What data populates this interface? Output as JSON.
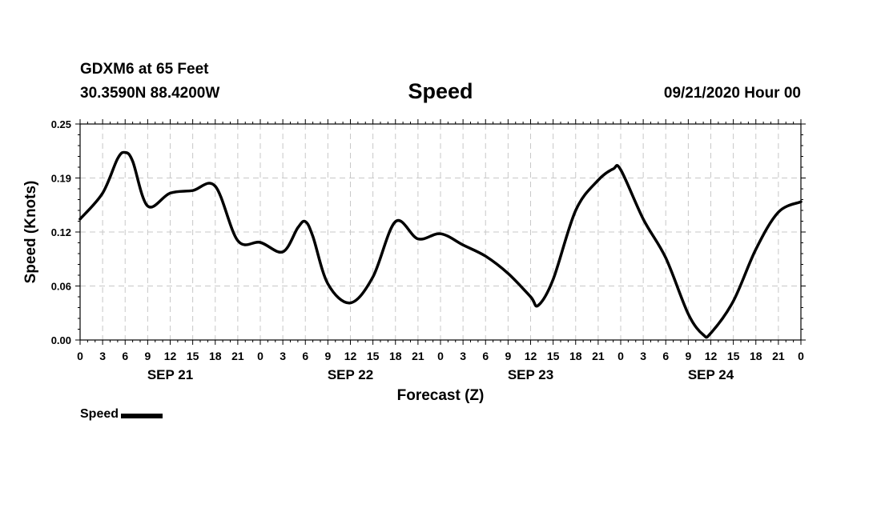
{
  "header": {
    "station": "GDXM6 at 65 Feet",
    "coords": "30.3590N 88.4200W",
    "title": "Speed",
    "datetime": "09/21/2020 Hour 00"
  },
  "legend": {
    "label": "Speed"
  },
  "chart_data": {
    "type": "line",
    "title": "Speed",
    "xlabel": "Forecast (Z)",
    "ylabel": "Speed (Knots)",
    "x_unit": "forecast hour",
    "xlim": [
      0,
      96
    ],
    "ylim": [
      0,
      0.25
    ],
    "y_ticks": [
      "0.00",
      "0.06",
      "0.12",
      "0.19",
      "0.25"
    ],
    "x_tick_labels": [
      "0",
      "3",
      "6",
      "9",
      "12",
      "15",
      "18",
      "21",
      "0",
      "3",
      "6",
      "9",
      "12",
      "15",
      "18",
      "21",
      "0",
      "3",
      "6",
      "9",
      "12",
      "15",
      "18",
      "21",
      "0",
      "3",
      "6",
      "9",
      "12",
      "15",
      "18",
      "21",
      "0"
    ],
    "day_labels": [
      "SEP 21",
      "SEP 22",
      "SEP 23",
      "SEP 24"
    ],
    "grid": true,
    "legend_position": "bottom-left",
    "series_color": "#000000",
    "series": [
      {
        "name": "Speed",
        "points": [
          [
            0,
            0.14
          ],
          [
            3,
            0.17
          ],
          [
            5,
            0.21
          ],
          [
            6,
            0.217
          ],
          [
            7,
            0.207
          ],
          [
            9,
            0.155
          ],
          [
            12,
            0.17
          ],
          [
            15,
            0.173
          ],
          [
            18,
            0.178
          ],
          [
            21,
            0.115
          ],
          [
            24,
            0.113
          ],
          [
            27,
            0.102
          ],
          [
            29,
            0.13
          ],
          [
            30,
            0.137
          ],
          [
            31,
            0.12
          ],
          [
            33,
            0.065
          ],
          [
            36,
            0.043
          ],
          [
            39,
            0.073
          ],
          [
            42,
            0.137
          ],
          [
            45,
            0.117
          ],
          [
            48,
            0.123
          ],
          [
            51,
            0.11
          ],
          [
            54,
            0.097
          ],
          [
            57,
            0.077
          ],
          [
            60,
            0.05
          ],
          [
            61,
            0.04
          ],
          [
            63,
            0.07
          ],
          [
            66,
            0.15
          ],
          [
            69,
            0.185
          ],
          [
            71,
            0.198
          ],
          [
            72,
            0.197
          ],
          [
            75,
            0.14
          ],
          [
            78,
            0.095
          ],
          [
            81,
            0.03
          ],
          [
            83,
            0.006
          ],
          [
            84,
            0.008
          ],
          [
            87,
            0.045
          ],
          [
            90,
            0.105
          ],
          [
            93,
            0.148
          ],
          [
            96,
            0.16
          ]
        ]
      }
    ]
  }
}
